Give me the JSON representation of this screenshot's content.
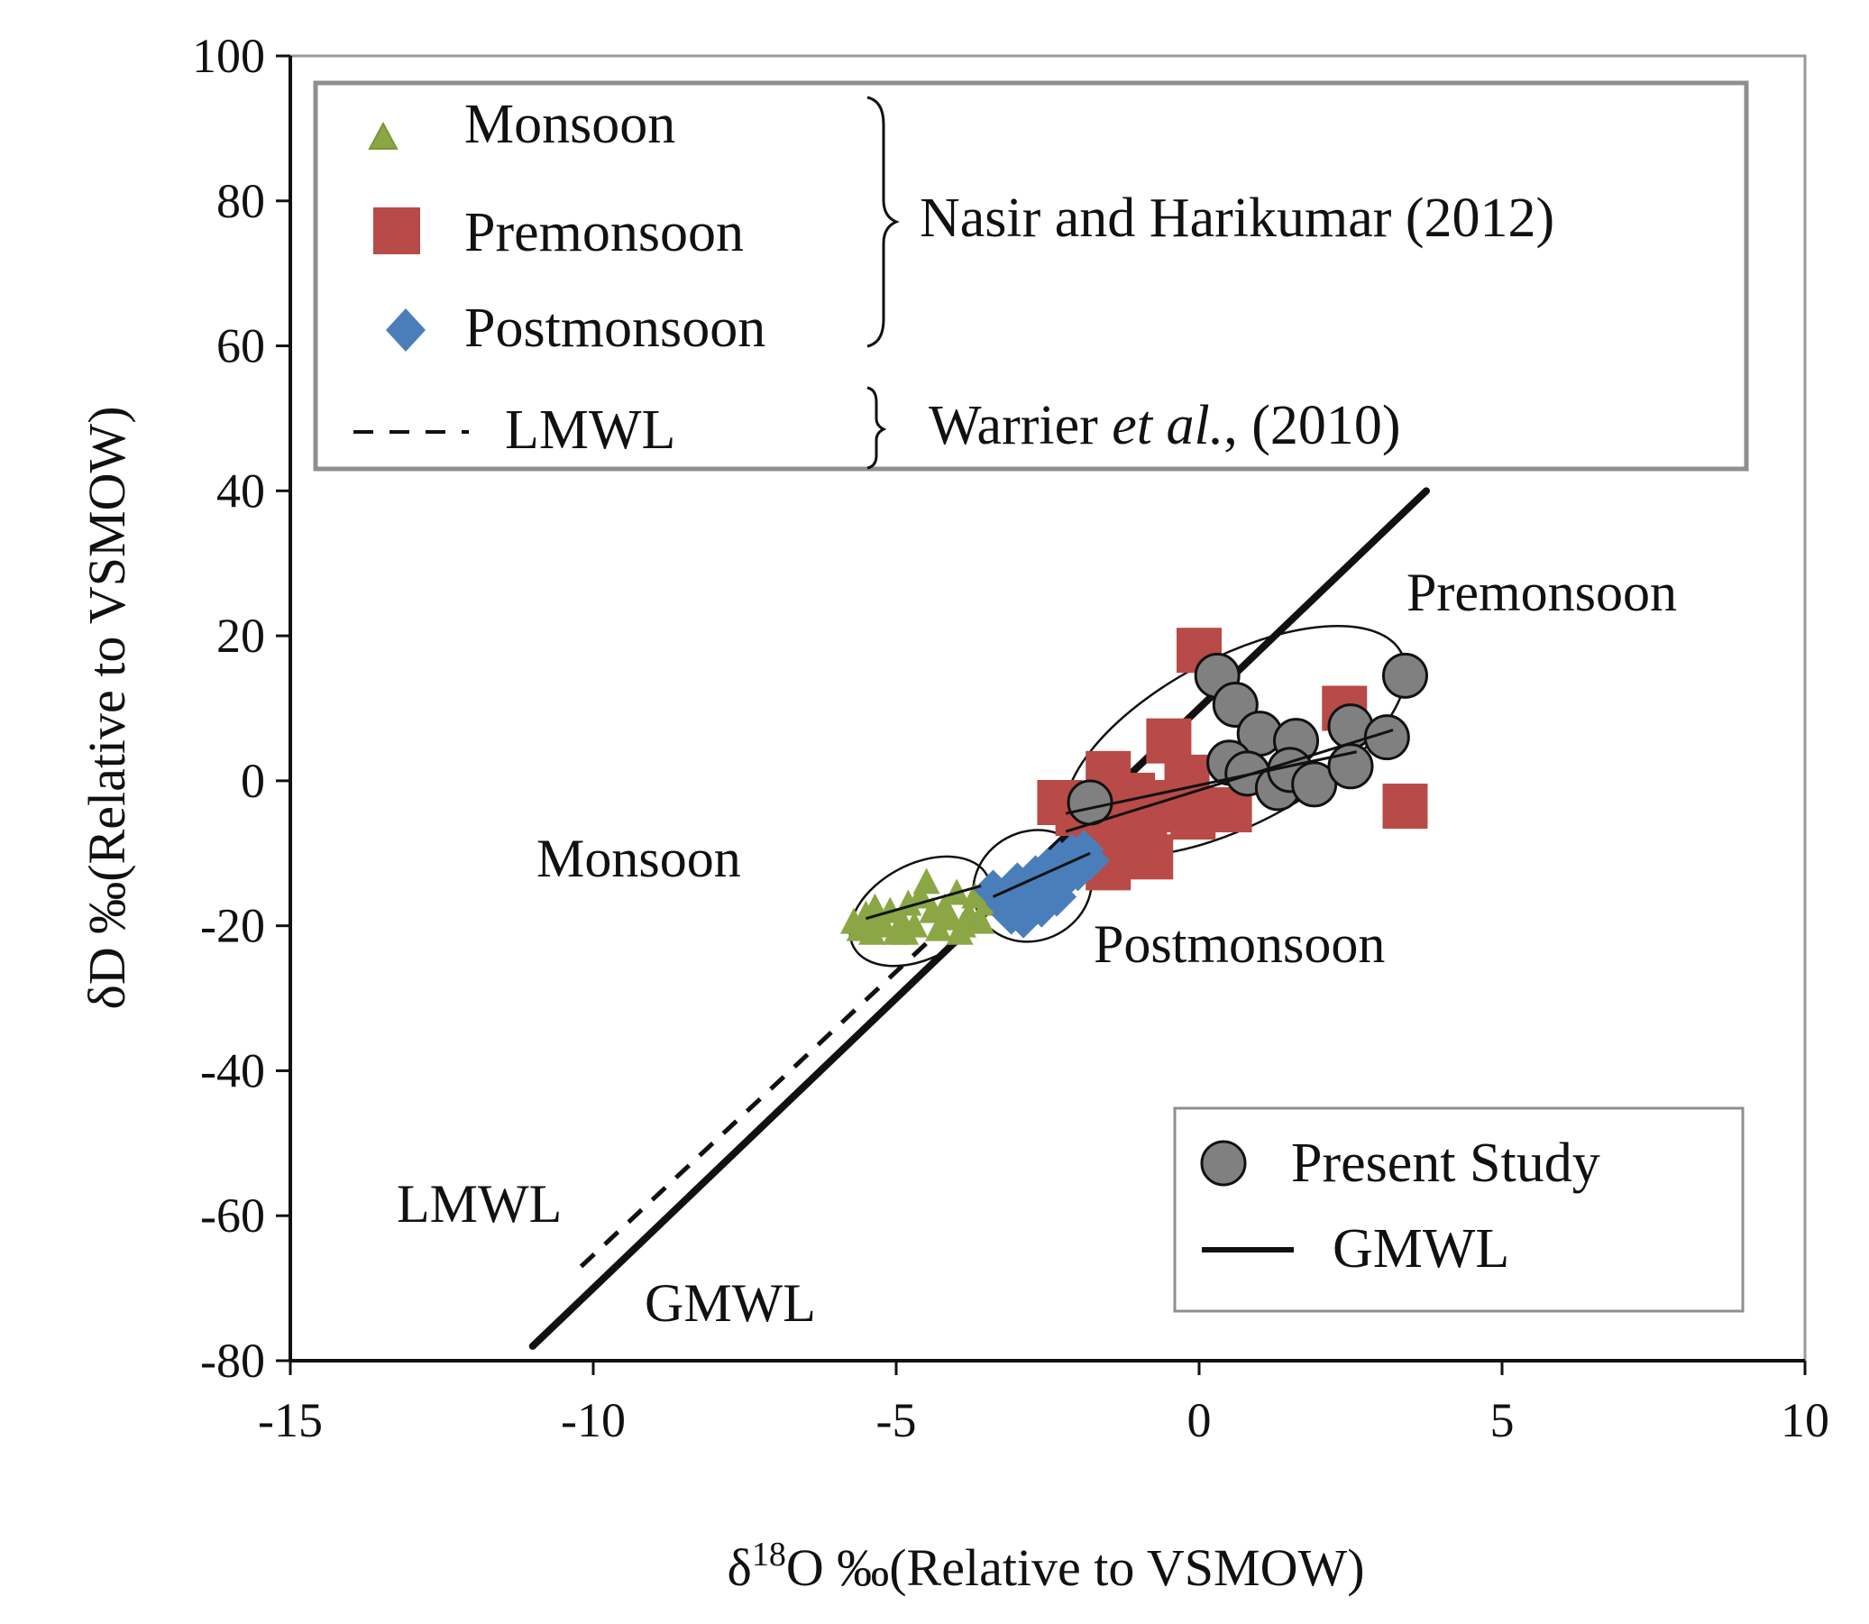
{
  "chart_data": {
    "type": "scatter",
    "xlabel_prefix": "δ",
    "xlabel_sup": "18",
    "xlabel_rest": "O ‰(Relative to VSMOW)",
    "ylabel": "δD ‰(Relative to VSMOW)",
    "xlim": [
      -15,
      10
    ],
    "ylim": [
      -80,
      100
    ],
    "x_ticks": [
      -15,
      -10,
      -5,
      0,
      5,
      10
    ],
    "y_ticks": [
      -80,
      -60,
      -40,
      -20,
      0,
      20,
      40,
      60,
      80,
      100
    ],
    "x_tick_labels": [
      "-15",
      "-10",
      "-5",
      "0",
      "5",
      "10"
    ],
    "y_tick_labels": [
      "-80",
      "-60",
      "-40",
      "-20",
      "0",
      "20",
      "40",
      "60",
      "80",
      "100"
    ],
    "series": [
      {
        "name": "Monsoon",
        "marker": "triangle",
        "color": "#8BA644",
        "points": [
          [
            -5.7,
            -19.5
          ],
          [
            -5.6,
            -20.5
          ],
          [
            -5.5,
            -18.5
          ],
          [
            -5.4,
            -21
          ],
          [
            -5.3,
            -19
          ],
          [
            -5.2,
            -20
          ],
          [
            -5.1,
            -18
          ],
          [
            -5.0,
            -21
          ],
          [
            -4.9,
            -19.5
          ],
          [
            -4.8,
            -17
          ],
          [
            -4.7,
            -20
          ],
          [
            -4.6,
            -16
          ],
          [
            -4.5,
            -14
          ],
          [
            -4.4,
            -18
          ],
          [
            -4.3,
            -20.5
          ],
          [
            -4.2,
            -17.5
          ],
          [
            -4.1,
            -19
          ],
          [
            -4.0,
            -15.5
          ],
          [
            -3.9,
            -20
          ],
          [
            -3.8,
            -18.5
          ],
          [
            -3.7,
            -16
          ],
          [
            -3.6,
            -19.5
          ],
          [
            -3.5,
            -17
          ],
          [
            -3.4,
            -14.5
          ],
          [
            -4.85,
            -21
          ],
          [
            -5.35,
            -17.5
          ],
          [
            -3.95,
            -21
          ]
        ]
      },
      {
        "name": "Premonsoon",
        "marker": "square",
        "color": "#B84A48",
        "points": [
          [
            0.0,
            18
          ],
          [
            2.4,
            10
          ],
          [
            -0.5,
            5.5
          ],
          [
            -1.5,
            1
          ],
          [
            -0.2,
            0.5
          ],
          [
            -2.3,
            -3
          ],
          [
            -2.0,
            -4.5
          ],
          [
            -0.5,
            -3
          ],
          [
            -0.8,
            -4
          ],
          [
            0.5,
            -4
          ],
          [
            -0.1,
            -5
          ],
          [
            -1.2,
            -6
          ],
          [
            -1.7,
            -7.5
          ],
          [
            -0.9,
            -9
          ],
          [
            -0.8,
            -10.5
          ],
          [
            -1.5,
            -12
          ],
          [
            3.4,
            -3.5
          ],
          [
            -1.1,
            -2
          ]
        ]
      },
      {
        "name": "Postmonsoon",
        "marker": "diamond",
        "color": "#4A7EBB",
        "points": [
          [
            -3.4,
            -15
          ],
          [
            -3.2,
            -17
          ],
          [
            -3.0,
            -14
          ],
          [
            -2.9,
            -19
          ],
          [
            -2.8,
            -16
          ],
          [
            -2.7,
            -13
          ],
          [
            -2.6,
            -17.5
          ],
          [
            -2.5,
            -12
          ],
          [
            -2.4,
            -15
          ],
          [
            -2.3,
            -11
          ],
          [
            -2.2,
            -13.5
          ],
          [
            -2.1,
            -10
          ],
          [
            -2.0,
            -12.5
          ],
          [
            -1.9,
            -9.5
          ],
          [
            -1.8,
            -11
          ],
          [
            -3.1,
            -18.5
          ],
          [
            -2.65,
            -14.5
          ],
          [
            -2.35,
            -16
          ]
        ]
      },
      {
        "name": "Present Study",
        "marker": "circle",
        "color": "#808080",
        "points": [
          [
            0.3,
            14.5
          ],
          [
            0.6,
            10.5
          ],
          [
            1.0,
            6.5
          ],
          [
            1.6,
            5.5
          ],
          [
            2.5,
            7.5
          ],
          [
            3.4,
            14.5
          ],
          [
            0.5,
            2.5
          ],
          [
            0.8,
            1
          ],
          [
            1.3,
            -1
          ],
          [
            1.5,
            1.5
          ],
          [
            1.9,
            -0.5
          ],
          [
            2.5,
            2
          ],
          [
            3.1,
            6
          ],
          [
            -1.8,
            -3
          ]
        ]
      }
    ],
    "lines": [
      {
        "name": "GMWL",
        "style": "solid",
        "x": [
          -11,
          3.75
        ],
        "y": [
          -78,
          40
        ]
      },
      {
        "name": "LMWL",
        "style": "dashed",
        "x": [
          -10.2,
          -4.0
        ],
        "y": [
          -67,
          -18.5
        ]
      }
    ],
    "fit_lines": [
      {
        "group": "Monsoon",
        "x": [
          -5.5,
          -3.6
        ],
        "y": [
          -19,
          -14.5
        ]
      },
      {
        "group": "Postmonsoon",
        "x": [
          -3.4,
          -1.8
        ],
        "y": [
          -16,
          -10
        ]
      },
      {
        "group": "Premonsoon",
        "x": [
          -2.2,
          3.2
        ],
        "y": [
          -7,
          7
        ]
      },
      {
        "group": "Premonsoon",
        "x": [
          -2.2,
          2.6
        ],
        "y": [
          -4.5,
          4
        ]
      }
    ],
    "ellipses": [
      {
        "group": "Monsoon",
        "cx": -4.6,
        "cy": -18,
        "rx": 1.25,
        "ry": 6.5
      },
      {
        "group": "Postmonsoon",
        "cx": -2.75,
        "cy": -14.5,
        "rx": 1.0,
        "ry": 7.5
      },
      {
        "group": "Premonsoon",
        "cx": 0.6,
        "cy": 5.5,
        "rx": 3.1,
        "ry": 11.5
      }
    ],
    "annotations": {
      "premonsoon": "Premonsoon",
      "monsoon": "Monsoon",
      "postmonsoon": "Postmonsoon",
      "lmwl": "LMWL",
      "gmwl": "GMWL"
    },
    "legend_top": {
      "position": "top-left",
      "monsoon": "Monsoon",
      "premonsoon": "Premonsoon",
      "postmonsoon": "Postmonsoon",
      "lmwl": "LMWL",
      "source_a": "Nasir and Harikumar (2012)",
      "source_b_name": "Warrier ",
      "source_b_etal": "et al.",
      "source_b_year": ", (2010)"
    },
    "legend_bottom": {
      "position": "bottom-right",
      "present_study": "Present Study",
      "gmwl": "GMWL"
    },
    "grid": false
  }
}
